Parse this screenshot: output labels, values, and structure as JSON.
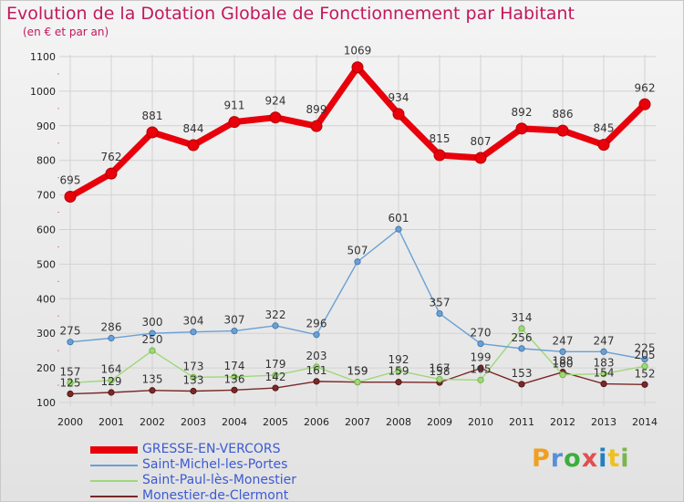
{
  "colors": {
    "title": "#c2185b",
    "legend_text": "#3c5ad2",
    "grid": "#d2d2d2",
    "axis_text": "#222222",
    "logo": [
      "#f0a020",
      "#5a8fd6",
      "#3cae3c",
      "#e05050",
      "#2080c0",
      "#f0c020",
      "#7ab648"
    ]
  },
  "logo": {
    "text": "Proxiti",
    "letters": [
      "P",
      "r",
      "o",
      "x",
      "i",
      "t",
      "i"
    ]
  },
  "chart_data": {
    "type": "line",
    "title": "Evolution de la Dotation Globale de Fonctionnement par Habitant",
    "subtitle": "(en € et par an)",
    "xlabel": "",
    "ylabel": "",
    "ylim": [
      100,
      1100
    ],
    "yticks": [
      100,
      200,
      300,
      400,
      500,
      600,
      700,
      800,
      900,
      1000,
      1100
    ],
    "grid": true,
    "legend_position": "bottom-left",
    "categories": [
      "2000",
      "2001",
      "2002",
      "2003",
      "2004",
      "2005",
      "2006",
      "2007",
      "2008",
      "2009",
      "2010",
      "2011",
      "2012",
      "2013",
      "2014"
    ],
    "series": [
      {
        "name": "GRESSE-EN-VERCORS",
        "color": "#e8000b",
        "edge": "#b30000",
        "emphasis": "bold",
        "values": [
          695,
          762,
          881,
          844,
          911,
          924,
          899,
          1069,
          934,
          815,
          807,
          892,
          886,
          845,
          962
        ],
        "labels": [
          "695",
          "762",
          "881",
          "844",
          "911",
          "924",
          "899",
          "1069",
          "934",
          "815",
          "807",
          "892",
          "886",
          "845",
          "962"
        ]
      },
      {
        "name": "Saint-Michel-les-Portes",
        "color": "#6aa0d4",
        "edge": "#3a6ea8",
        "emphasis": "normal",
        "values": [
          275,
          286,
          300,
          304,
          307,
          322,
          296,
          507,
          601,
          357,
          270,
          256,
          247,
          247,
          225
        ],
        "labels": [
          "275",
          "286",
          "300",
          "304",
          "307",
          "322",
          "296",
          "507",
          "601",
          "357",
          "270",
          "256",
          "247",
          "247",
          "225"
        ]
      },
      {
        "name": "Saint-Paul-lès-Monestier",
        "color": "#9ed878",
        "edge": "#6aab3e",
        "emphasis": "normal",
        "values": [
          157,
          164,
          250,
          173,
          174,
          179,
          203,
          159,
          192,
          167,
          165,
          314,
          180,
          183,
          205
        ],
        "labels": [
          "157",
          "164",
          "250",
          "173",
          "174",
          "179",
          "203",
          "159",
          "192",
          "167",
          "165",
          "314",
          "180",
          "183",
          "205"
        ]
      },
      {
        "name": "Monestier-de-Clermont",
        "color": "#7a2828",
        "edge": "#4a1010",
        "emphasis": "normal",
        "values": [
          125,
          129,
          135,
          133,
          136,
          142,
          161,
          159,
          159,
          158,
          199,
          153,
          188,
          154,
          152
        ],
        "labels": [
          "125",
          "129",
          "135",
          "133",
          "136",
          "142",
          "161",
          "159",
          "159",
          "158",
          "199",
          "153",
          "188",
          "154",
          "152"
        ]
      }
    ]
  }
}
